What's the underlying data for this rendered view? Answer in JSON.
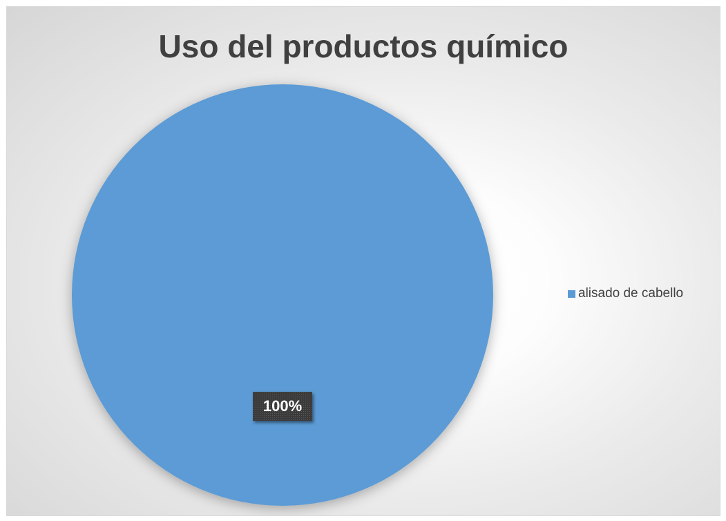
{
  "chart_data": {
    "type": "pie",
    "title": "Uso del productos químico",
    "categories": [
      "alisado de cabello"
    ],
    "values": [
      1
    ],
    "data_labels": [
      "100%"
    ],
    "colors": [
      "#5B9BD5"
    ],
    "legend_position": "right"
  }
}
